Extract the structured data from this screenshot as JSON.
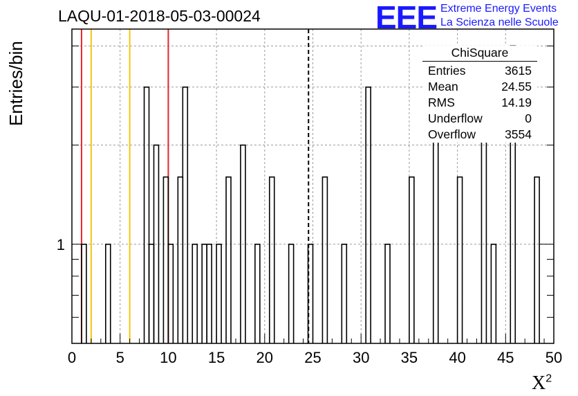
{
  "title": "LAQU-01-2018-05-03-00024",
  "logo": {
    "mark": "EEE",
    "line1": "Extreme Energy Events",
    "line2": "La Scienza nelle Scuole",
    "color": "#1a1aff"
  },
  "stats_box": {
    "title": "ChiSquare",
    "rows": [
      {
        "label": "Entries",
        "value": "3615"
      },
      {
        "label": "Mean",
        "value": "24.55"
      },
      {
        "label": "RMS",
        "value": "14.19"
      },
      {
        "label": "Underflow",
        "value": "0"
      },
      {
        "label": "Overflow",
        "value": "3554"
      }
    ]
  },
  "chart_data": {
    "type": "bar",
    "histogram": "step",
    "ylabel": "Entries/bin",
    "xlabel": "X",
    "xlabel_superscript": "2",
    "xlim": [
      0,
      50
    ],
    "ylim": [
      0.5,
      4.5
    ],
    "log_y": true,
    "bin_width": 0.5,
    "grid": true,
    "x_ticks": [
      0,
      5,
      10,
      15,
      20,
      25,
      30,
      35,
      40,
      45,
      50
    ],
    "y_tick_labels": [
      "1"
    ],
    "bins": [
      {
        "x": 1.0,
        "value": 1
      },
      {
        "x": 3.5,
        "value": 1
      },
      {
        "x": 7.5,
        "value": 3
      },
      {
        "x": 8.0,
        "value": 1
      },
      {
        "x": 8.5,
        "value": 2
      },
      {
        "x": 9.5,
        "value": 1.6
      },
      {
        "x": 10.0,
        "value": 1
      },
      {
        "x": 11.0,
        "value": 1.6
      },
      {
        "x": 11.5,
        "value": 3
      },
      {
        "x": 12.5,
        "value": 1
      },
      {
        "x": 13.5,
        "value": 1
      },
      {
        "x": 14.0,
        "value": 1
      },
      {
        "x": 15.0,
        "value": 1
      },
      {
        "x": 16.0,
        "value": 1.6
      },
      {
        "x": 17.5,
        "value": 2
      },
      {
        "x": 19.0,
        "value": 1
      },
      {
        "x": 20.5,
        "value": 1.6
      },
      {
        "x": 22.5,
        "value": 1
      },
      {
        "x": 24.5,
        "value": 1
      },
      {
        "x": 26.0,
        "value": 1.6
      },
      {
        "x": 28.0,
        "value": 1
      },
      {
        "x": 30.5,
        "value": 3
      },
      {
        "x": 32.5,
        "value": 1
      },
      {
        "x": 35.0,
        "value": 1.6
      },
      {
        "x": 37.5,
        "value": 3
      },
      {
        "x": 40.0,
        "value": 1.6
      },
      {
        "x": 42.5,
        "value": 3
      },
      {
        "x": 43.5,
        "value": 1
      },
      {
        "x": 45.5,
        "value": 4
      },
      {
        "x": 48.0,
        "value": 1.6
      }
    ],
    "vertical_lines": [
      {
        "x": 1.0,
        "color": "#e8222a",
        "style": "solid"
      },
      {
        "x": 2.0,
        "color": "#f5c40f",
        "style": "solid"
      },
      {
        "x": 6.0,
        "color": "#f5c40f",
        "style": "solid"
      },
      {
        "x": 10.0,
        "color": "#e8222a",
        "style": "solid"
      },
      {
        "x": 24.55,
        "color": "#000000",
        "style": "dashed"
      }
    ]
  }
}
